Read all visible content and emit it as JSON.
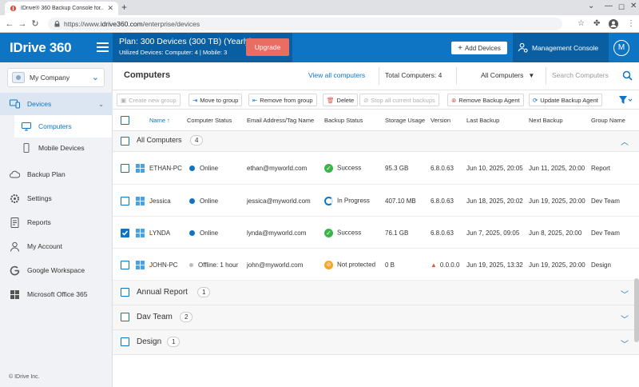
{
  "browser": {
    "tab_title": "IDrive® 360 Backup Console for...",
    "url_prefix": "https://www.",
    "url_domain": "idrive360.com",
    "url_path": "/enterprise/devices"
  },
  "header": {
    "logo": "IDrive 360",
    "plan": "Plan: 300 Devices (300 TB) (Yearly)",
    "utilized": "Utilized Devices: Computer: 4 |   Mobile: 3",
    "upgrade": "Upgrade",
    "add_devices": "Add Devices",
    "management_console": "Management Console",
    "avatar": "M"
  },
  "sidebar": {
    "company": "My Company",
    "items": [
      {
        "label": "Devices",
        "icon": "devices-icon"
      },
      {
        "label": "Computers",
        "icon": "monitor-icon"
      },
      {
        "label": "Mobile Devices",
        "icon": "mobile-icon"
      },
      {
        "label": "Backup Plan",
        "icon": "cloud-icon"
      },
      {
        "label": "Settings",
        "icon": "gear-icon"
      },
      {
        "label": "Reports",
        "icon": "report-icon"
      },
      {
        "label": "My Account",
        "icon": "user-icon"
      },
      {
        "label": "Google Workspace",
        "icon": "google-icon"
      },
      {
        "label": "Microsoft Office 365",
        "icon": "office-icon"
      }
    ],
    "copyright": "© IDrive Inc."
  },
  "main": {
    "title": "Computers",
    "view_all": "View all computers",
    "total": "Total Computers: 4",
    "filter": "All Computers",
    "search_placeholder": "Search Computers",
    "toolbar": {
      "create_group": "Create new group",
      "move_group": "Move to group",
      "remove_group": "Remove from group",
      "delete": "Delete",
      "stop_backups": "Stop all current backups",
      "remove_agent": "Remove Backup Agent",
      "update_agent": "Update Backup Agent"
    },
    "columns": [
      "Name",
      "Computer Status",
      "Email Address/Tag Name",
      "Backup Status",
      "Storage Usage",
      "Version",
      "Last Backup",
      "Next Backup",
      "Group Name"
    ],
    "all_group": {
      "name": "All Computers",
      "count": "4"
    },
    "rows": [
      {
        "name": "ETHAN-PC",
        "status": "Online",
        "email": "ethan@myworld.com",
        "backup": "Success",
        "storage": "95.3 GB",
        "version": "6.8.0.63",
        "last": "Jun 10, 2025, 20:05",
        "next": "Jun 11, 2025, 20:00",
        "group": "Report",
        "checked": false
      },
      {
        "name": "Jessica",
        "status": "Online",
        "email": "jessica@myworld.com",
        "backup": "In Progress",
        "storage": "407.10 MB",
        "version": "6.8.0.63",
        "last": "Jun 18, 2025, 20:02",
        "next": "Jun 19, 2025, 20:00",
        "group": "Dev Team",
        "checked": false
      },
      {
        "name": "LYNDA",
        "status": "Online",
        "email": "lynda@myworld.com",
        "backup": "Success",
        "storage": "76.1 GB",
        "version": "6.8.0.63",
        "last": "Jun 7, 2025, 09:05",
        "next": "Jun 8, 2025, 20:00",
        "group": "Dev Team",
        "checked": true
      },
      {
        "name": "JOHN-PC",
        "status": "Offline: 1 hour",
        "email": "john@myworld.com",
        "backup": "Not protected",
        "storage": "0 B",
        "version": "0.0.0.0",
        "last": "Jun 19, 2025, 13:32",
        "next": "Jun 19, 2025, 20:00",
        "group": "Design",
        "checked": false
      }
    ],
    "groups": [
      {
        "name": "Annual Report",
        "count": "1"
      },
      {
        "name": "Dav Team",
        "count": "2"
      },
      {
        "name": "Design",
        "count": "1"
      }
    ]
  },
  "colors": {
    "brand": "#0e75c5",
    "success": "#3bb54a",
    "warning": "#f5a623",
    "upgrade": "#ea6d63"
  }
}
